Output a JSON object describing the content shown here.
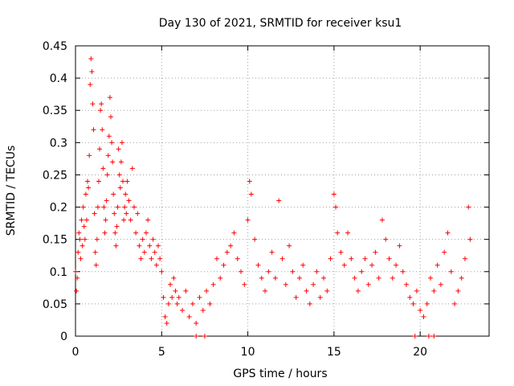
{
  "chart_data": {
    "type": "scatter",
    "title": "Day 130 of 2021, SRMTID for receiver ksu1",
    "xlabel": "GPS time / hours",
    "ylabel": "SRMTID / TECUs",
    "xlim": [
      0,
      24
    ],
    "ylim": [
      0,
      0.45
    ],
    "xticks": [
      0,
      5,
      10,
      15,
      20
    ],
    "yticks": [
      0,
      0.05,
      0.1,
      0.15,
      0.2,
      0.25,
      0.3,
      0.35,
      0.4,
      0.45
    ],
    "xtick_labels": [
      "0",
      "5",
      "10",
      "15",
      "20"
    ],
    "ytick_labels": [
      "0",
      "0.05",
      "0.1",
      "0.15",
      "0.2",
      "0.25",
      "0.3",
      "0.35",
      "0.4",
      "0.45"
    ],
    "grid": true,
    "marker": "+",
    "color": "#ff0000",
    "series": [
      {
        "name": "SRMTID",
        "points": [
          [
            0.0,
            0.1
          ],
          [
            0.05,
            0.07
          ],
          [
            0.1,
            0.09
          ],
          [
            0.15,
            0.13
          ],
          [
            0.2,
            0.16
          ],
          [
            0.25,
            0.15
          ],
          [
            0.3,
            0.12
          ],
          [
            0.35,
            0.18
          ],
          [
            0.4,
            0.14
          ],
          [
            0.45,
            0.2
          ],
          [
            0.5,
            0.17
          ],
          [
            0.55,
            0.15
          ],
          [
            0.6,
            0.22
          ],
          [
            0.65,
            0.18
          ],
          [
            0.7,
            0.24
          ],
          [
            0.75,
            0.23
          ],
          [
            0.8,
            0.28
          ],
          [
            0.85,
            0.39
          ],
          [
            0.9,
            0.43
          ],
          [
            0.95,
            0.41
          ],
          [
            1.0,
            0.36
          ],
          [
            1.05,
            0.32
          ],
          [
            1.1,
            0.19
          ],
          [
            1.15,
            0.13
          ],
          [
            1.2,
            0.11
          ],
          [
            1.25,
            0.15
          ],
          [
            1.3,
            0.2
          ],
          [
            1.35,
            0.24
          ],
          [
            1.4,
            0.29
          ],
          [
            1.45,
            0.35
          ],
          [
            1.5,
            0.36
          ],
          [
            1.55,
            0.32
          ],
          [
            1.6,
            0.26
          ],
          [
            1.65,
            0.2
          ],
          [
            1.7,
            0.16
          ],
          [
            1.75,
            0.18
          ],
          [
            1.8,
            0.21
          ],
          [
            1.85,
            0.25
          ],
          [
            1.9,
            0.28
          ],
          [
            1.95,
            0.31
          ],
          [
            2.0,
            0.37
          ],
          [
            2.05,
            0.34
          ],
          [
            2.1,
            0.3
          ],
          [
            2.15,
            0.27
          ],
          [
            2.2,
            0.22
          ],
          [
            2.25,
            0.19
          ],
          [
            2.3,
            0.16
          ],
          [
            2.35,
            0.14
          ],
          [
            2.4,
            0.17
          ],
          [
            2.45,
            0.2
          ],
          [
            2.5,
            0.29
          ],
          [
            2.55,
            0.25
          ],
          [
            2.6,
            0.23
          ],
          [
            2.65,
            0.27
          ],
          [
            2.7,
            0.3
          ],
          [
            2.75,
            0.24
          ],
          [
            2.8,
            0.18
          ],
          [
            2.85,
            0.2
          ],
          [
            2.9,
            0.22
          ],
          [
            2.95,
            0.19
          ],
          [
            3.0,
            0.24
          ],
          [
            3.1,
            0.21
          ],
          [
            3.2,
            0.18
          ],
          [
            3.3,
            0.26
          ],
          [
            3.4,
            0.2
          ],
          [
            3.5,
            0.16
          ],
          [
            3.6,
            0.19
          ],
          [
            3.7,
            0.14
          ],
          [
            3.8,
            0.12
          ],
          [
            3.9,
            0.15
          ],
          [
            4.0,
            0.13
          ],
          [
            4.1,
            0.16
          ],
          [
            4.2,
            0.18
          ],
          [
            4.3,
            0.14
          ],
          [
            4.4,
            0.12
          ],
          [
            4.5,
            0.15
          ],
          [
            4.6,
            0.13
          ],
          [
            4.7,
            0.11
          ],
          [
            4.8,
            0.14
          ],
          [
            4.9,
            0.12
          ],
          [
            5.0,
            0.1
          ],
          [
            5.1,
            0.06
          ],
          [
            5.2,
            0.03
          ],
          [
            5.3,
            0.02
          ],
          [
            5.4,
            0.05
          ],
          [
            5.5,
            0.08
          ],
          [
            5.6,
            0.06
          ],
          [
            5.7,
            0.09
          ],
          [
            5.8,
            0.07
          ],
          [
            5.9,
            0.05
          ],
          [
            6.0,
            0.06
          ],
          [
            6.2,
            0.04
          ],
          [
            6.4,
            0.07
          ],
          [
            6.6,
            0.03
          ],
          [
            6.8,
            0.05
          ],
          [
            7.0,
            0.02
          ],
          [
            7.2,
            0.06
          ],
          [
            7.4,
            0.04
          ],
          [
            7.6,
            0.07
          ],
          [
            7.8,
            0.05
          ],
          [
            8.0,
            0.08
          ],
          [
            8.2,
            0.12
          ],
          [
            8.4,
            0.09
          ],
          [
            8.6,
            0.11
          ],
          [
            8.8,
            0.13
          ],
          [
            9.0,
            0.14
          ],
          [
            9.2,
            0.16
          ],
          [
            9.4,
            0.12
          ],
          [
            9.6,
            0.1
          ],
          [
            9.8,
            0.08
          ],
          [
            10.0,
            0.18
          ],
          [
            10.1,
            0.24
          ],
          [
            10.2,
            0.22
          ],
          [
            10.4,
            0.15
          ],
          [
            10.6,
            0.11
          ],
          [
            10.8,
            0.09
          ],
          [
            11.0,
            0.07
          ],
          [
            11.2,
            0.1
          ],
          [
            11.4,
            0.13
          ],
          [
            11.6,
            0.09
          ],
          [
            11.8,
            0.21
          ],
          [
            12.0,
            0.12
          ],
          [
            12.2,
            0.08
          ],
          [
            12.4,
            0.14
          ],
          [
            12.6,
            0.1
          ],
          [
            12.8,
            0.06
          ],
          [
            13.0,
            0.09
          ],
          [
            13.2,
            0.11
          ],
          [
            13.4,
            0.07
          ],
          [
            13.6,
            0.05
          ],
          [
            13.8,
            0.08
          ],
          [
            14.0,
            0.1
          ],
          [
            14.2,
            0.06
          ],
          [
            14.4,
            0.09
          ],
          [
            14.6,
            0.07
          ],
          [
            14.8,
            0.12
          ],
          [
            15.0,
            0.22
          ],
          [
            15.1,
            0.2
          ],
          [
            15.2,
            0.16
          ],
          [
            15.4,
            0.13
          ],
          [
            15.6,
            0.11
          ],
          [
            15.8,
            0.16
          ],
          [
            16.0,
            0.12
          ],
          [
            16.2,
            0.09
          ],
          [
            16.4,
            0.07
          ],
          [
            16.6,
            0.1
          ],
          [
            16.8,
            0.12
          ],
          [
            17.0,
            0.08
          ],
          [
            17.2,
            0.11
          ],
          [
            17.4,
            0.13
          ],
          [
            17.6,
            0.09
          ],
          [
            17.8,
            0.18
          ],
          [
            18.0,
            0.15
          ],
          [
            18.2,
            0.12
          ],
          [
            18.4,
            0.09
          ],
          [
            18.6,
            0.11
          ],
          [
            18.8,
            0.14
          ],
          [
            19.0,
            0.1
          ],
          [
            19.2,
            0.08
          ],
          [
            19.4,
            0.06
          ],
          [
            19.6,
            0.05
          ],
          [
            19.8,
            0.07
          ],
          [
            20.0,
            0.04
          ],
          [
            20.2,
            0.03
          ],
          [
            20.4,
            0.05
          ],
          [
            20.6,
            0.09
          ],
          [
            20.8,
            0.07
          ],
          [
            21.0,
            0.11
          ],
          [
            21.2,
            0.08
          ],
          [
            21.4,
            0.13
          ],
          [
            21.6,
            0.16
          ],
          [
            21.8,
            0.1
          ],
          [
            22.0,
            0.05
          ],
          [
            22.2,
            0.07
          ],
          [
            22.4,
            0.09
          ],
          [
            22.6,
            0.12
          ],
          [
            22.8,
            0.2
          ],
          [
            22.9,
            0.15
          ]
        ]
      }
    ],
    "zero_markers_x": [
      7.0,
      7.5,
      19.7,
      20.5,
      20.8
    ]
  }
}
